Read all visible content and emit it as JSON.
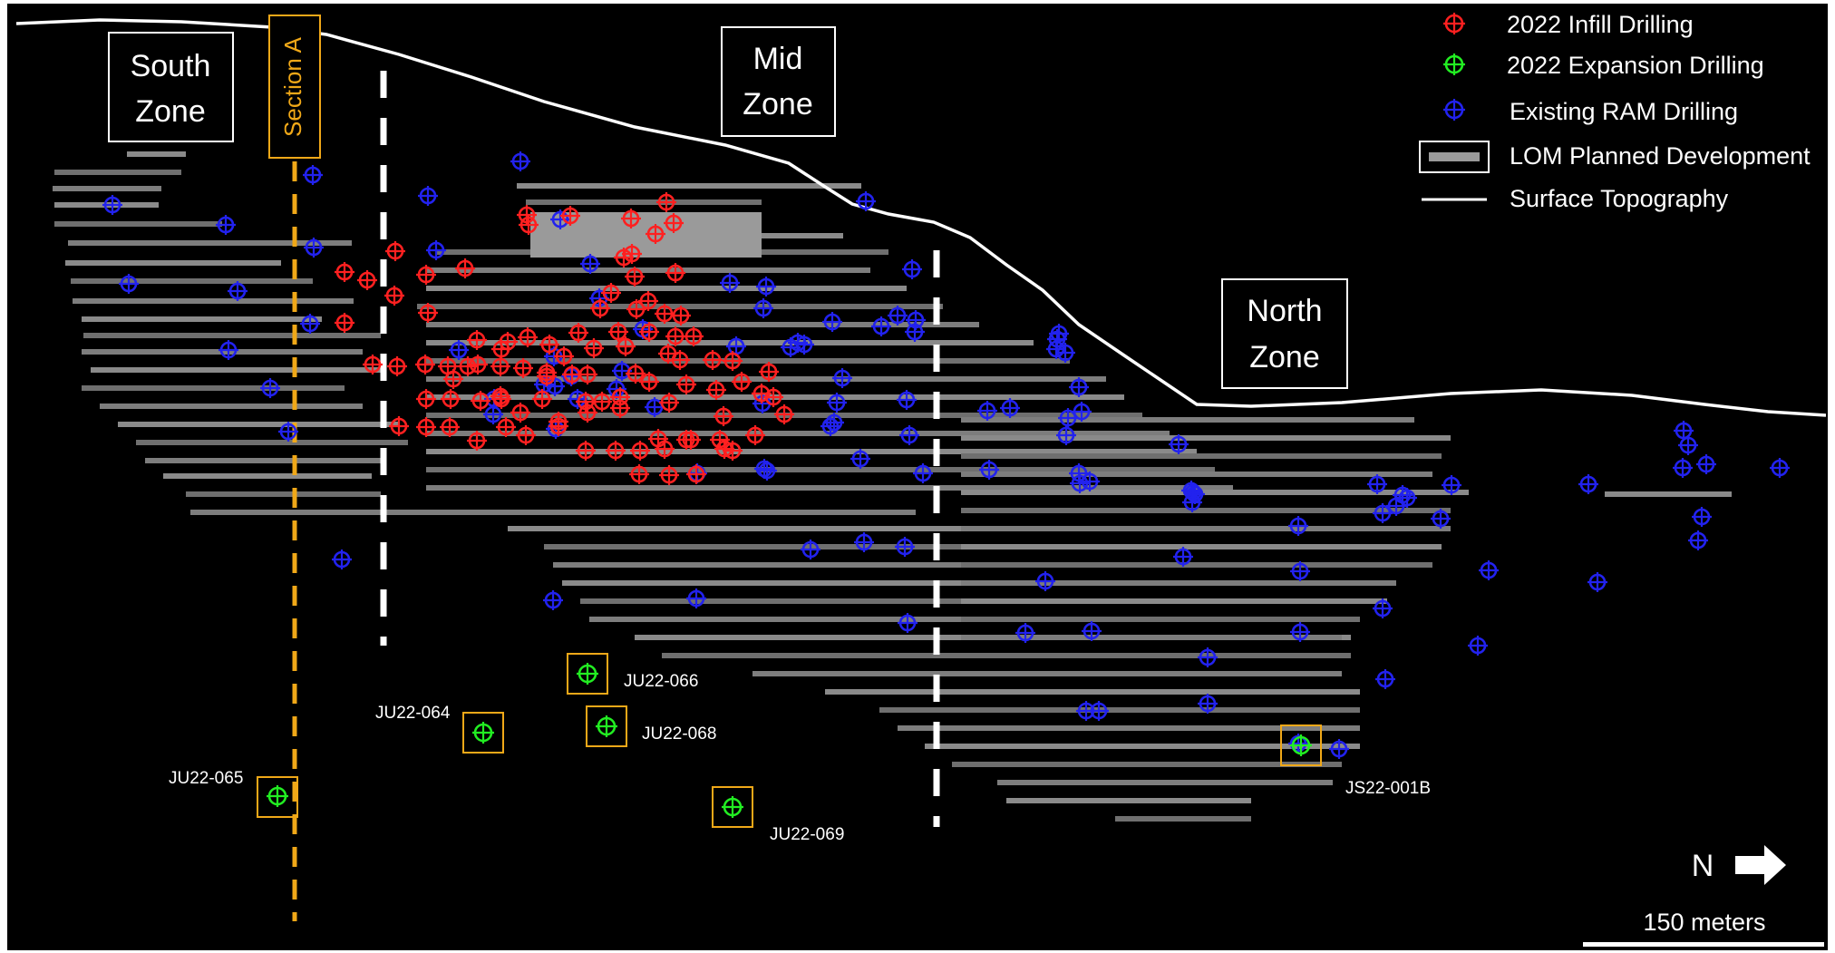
{
  "zones": {
    "south": [
      "South",
      "Zone"
    ],
    "mid": [
      "Mid",
      "Zone"
    ],
    "north": [
      "North",
      "Zone"
    ]
  },
  "section_label": "Section A",
  "legend": {
    "infill": "2022 Infill Drilling",
    "expansion": "2022 Expansion Drilling",
    "existing": "Existing RAM Drilling",
    "development": "LOM Planned Development",
    "topography": "Surface Topography"
  },
  "colors": {
    "infill": "#ff2020",
    "expansion": "#22ee22",
    "existing": "#2222ee",
    "section": "#f0a818",
    "background": "#000000",
    "line": "#ffffff"
  },
  "expansion_holes": [
    "JU22-066",
    "JU22-064",
    "JU22-068",
    "JU22-065",
    "JU22-069",
    "JS22-001B"
  ],
  "north_arrow": "N",
  "scale_bar": "150 meters",
  "icons": {
    "drill_marker": "crosshair-circle-icon",
    "north_arrow": "arrow-right-icon"
  }
}
